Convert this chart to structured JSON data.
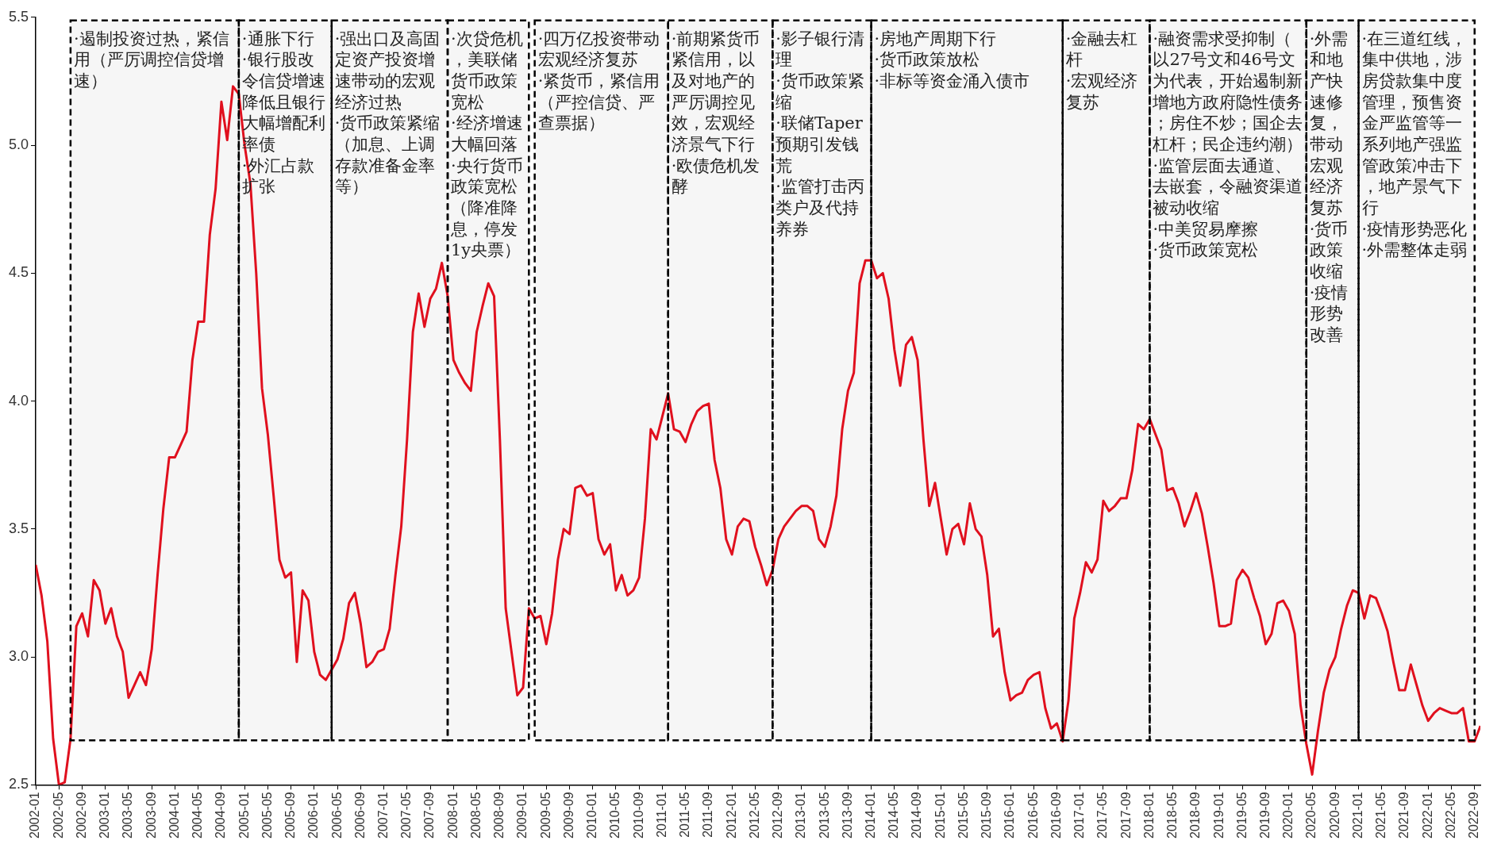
{
  "chart_data": {
    "type": "line",
    "x": [
      "2002-01",
      "2002-02",
      "2002-03",
      "2002-04",
      "2002-05",
      "2002-06",
      "2002-07",
      "2002-08",
      "2002-09",
      "2002-10",
      "2002-11",
      "2002-12",
      "2003-01",
      "2003-02",
      "2003-03",
      "2003-04",
      "2003-05",
      "2003-06",
      "2003-07",
      "2003-08",
      "2003-09",
      "2003-10",
      "2003-11",
      "2003-12",
      "2004-01",
      "2004-02",
      "2004-03",
      "2004-04",
      "2004-05",
      "2004-06",
      "2004-07",
      "2004-08",
      "2004-09",
      "2004-10",
      "2004-11",
      "2004-12",
      "2005-01",
      "2005-02",
      "2005-03",
      "2005-04",
      "2005-05",
      "2005-06",
      "2005-07",
      "2005-08",
      "2005-09",
      "2005-10",
      "2005-11",
      "2005-12",
      "2006-01",
      "2006-02",
      "2006-03",
      "2006-04",
      "2006-05",
      "2006-06",
      "2006-07",
      "2006-08",
      "2006-09",
      "2006-10",
      "2006-11",
      "2006-12",
      "2007-01",
      "2007-02",
      "2007-03",
      "2007-04",
      "2007-05",
      "2007-06",
      "2007-07",
      "2007-08",
      "2007-09",
      "2007-10",
      "2007-11",
      "2007-12",
      "2008-01",
      "2008-02",
      "2008-03",
      "2008-04",
      "2008-05",
      "2008-06",
      "2008-07",
      "2008-08",
      "2008-09",
      "2008-10",
      "2008-11",
      "2008-12",
      "2009-01",
      "2009-02",
      "2009-03",
      "2009-04",
      "2009-05",
      "2009-06",
      "2009-07",
      "2009-08",
      "2009-09",
      "2009-10",
      "2009-11",
      "2009-12",
      "2010-01",
      "2010-02",
      "2010-03",
      "2010-04",
      "2010-05",
      "2010-06",
      "2010-07",
      "2010-08",
      "2010-09",
      "2010-10",
      "2010-11",
      "2010-12",
      "2011-01",
      "2011-02",
      "2011-03",
      "2011-04",
      "2011-05",
      "2011-06",
      "2011-07",
      "2011-08",
      "2011-09",
      "2011-10",
      "2011-11",
      "2011-12",
      "2012-01",
      "2012-02",
      "2012-03",
      "2012-04",
      "2012-05",
      "2012-06",
      "2012-07",
      "2012-08",
      "2012-09",
      "2012-10",
      "2012-11",
      "2012-12",
      "2013-01",
      "2013-02",
      "2013-03",
      "2013-04",
      "2013-05",
      "2013-06",
      "2013-07",
      "2013-08",
      "2013-09",
      "2013-10",
      "2013-11",
      "2013-12",
      "2014-01",
      "2014-02",
      "2014-03",
      "2014-04",
      "2014-05",
      "2014-06",
      "2014-07",
      "2014-08",
      "2014-09",
      "2014-10",
      "2014-11",
      "2014-12",
      "2015-01",
      "2015-02",
      "2015-03",
      "2015-04",
      "2015-05",
      "2015-06",
      "2015-07",
      "2015-08",
      "2015-09",
      "2015-10",
      "2015-11",
      "2015-12",
      "2016-01",
      "2016-02",
      "2016-03",
      "2016-04",
      "2016-05",
      "2016-06",
      "2016-07",
      "2016-08",
      "2016-09",
      "2016-10",
      "2016-11",
      "2016-12",
      "2017-01",
      "2017-02",
      "2017-03",
      "2017-04",
      "2017-05",
      "2017-06",
      "2017-07",
      "2017-08",
      "2017-09",
      "2017-10",
      "2017-11",
      "2017-12",
      "2018-01",
      "2018-02",
      "2018-03",
      "2018-04",
      "2018-05",
      "2018-06",
      "2018-07",
      "2018-08",
      "2018-09",
      "2018-10",
      "2018-11",
      "2018-12",
      "2019-01",
      "2019-02",
      "2019-03",
      "2019-04",
      "2019-05",
      "2019-06",
      "2019-07",
      "2019-08",
      "2019-09",
      "2019-10",
      "2019-11",
      "2019-12",
      "2020-01",
      "2020-02",
      "2020-03",
      "2020-04",
      "2020-05",
      "2020-06",
      "2020-07",
      "2020-08",
      "2020-09",
      "2020-10",
      "2020-11",
      "2020-12",
      "2021-01",
      "2021-02",
      "2021-03",
      "2021-04",
      "2021-05",
      "2021-06",
      "2021-07",
      "2021-08",
      "2021-09",
      "2021-10",
      "2021-11",
      "2021-12",
      "2022-01",
      "2022-02",
      "2022-03",
      "2022-04",
      "2022-05",
      "2022-06",
      "2022-07",
      "2022-08",
      "2022-09",
      "2022-10"
    ],
    "series": [
      {
        "color": "#e0101e",
        "values": [
          3.36,
          3.24,
          3.06,
          2.68,
          2.5,
          2.51,
          2.68,
          3.12,
          3.17,
          3.08,
          3.3,
          3.26,
          3.13,
          3.19,
          3.08,
          3.02,
          2.84,
          2.89,
          2.94,
          2.89,
          3.03,
          3.32,
          3.58,
          3.78,
          3.78,
          3.83,
          3.88,
          4.16,
          4.31,
          4.31,
          4.65,
          4.83,
          5.17,
          5.02,
          5.23,
          5.2,
          5.0,
          4.85,
          4.5,
          4.05,
          3.87,
          3.63,
          3.38,
          3.31,
          3.33,
          2.98,
          3.26,
          3.22,
          3.02,
          2.93,
          2.91,
          2.95,
          2.99,
          3.07,
          3.21,
          3.25,
          3.13,
          2.96,
          2.98,
          3.02,
          3.03,
          3.11,
          3.32,
          3.51,
          3.85,
          4.27,
          4.42,
          4.29,
          4.4,
          4.44,
          4.54,
          4.41,
          4.16,
          4.11,
          4.07,
          4.04,
          4.27,
          4.37,
          4.46,
          4.41,
          3.85,
          3.19,
          3.02,
          2.85,
          2.88,
          3.19,
          3.15,
          3.16,
          3.05,
          3.17,
          3.38,
          3.5,
          3.48,
          3.66,
          3.67,
          3.63,
          3.64,
          3.46,
          3.4,
          3.44,
          3.26,
          3.32,
          3.24,
          3.26,
          3.31,
          3.54,
          3.89,
          3.85,
          3.94,
          4.03,
          3.89,
          3.88,
          3.84,
          3.91,
          3.96,
          3.98,
          3.99,
          3.77,
          3.66,
          3.46,
          3.4,
          3.51,
          3.54,
          3.53,
          3.43,
          3.36,
          3.28,
          3.34,
          3.46,
          3.51,
          3.54,
          3.57,
          3.59,
          3.59,
          3.57,
          3.46,
          3.43,
          3.51,
          3.63,
          3.89,
          4.04,
          4.11,
          4.46,
          4.55,
          4.55,
          4.48,
          4.5,
          4.4,
          4.2,
          4.06,
          4.22,
          4.25,
          4.16,
          3.85,
          3.59,
          3.68,
          3.54,
          3.4,
          3.5,
          3.52,
          3.44,
          3.6,
          3.5,
          3.47,
          3.32,
          3.08,
          3.11,
          2.94,
          2.83,
          2.85,
          2.86,
          2.91,
          2.93,
          2.94,
          2.8,
          2.72,
          2.74,
          2.67,
          2.83,
          3.15,
          3.25,
          3.37,
          3.33,
          3.38,
          3.61,
          3.57,
          3.59,
          3.62,
          3.62,
          3.73,
          3.91,
          3.89,
          3.93,
          3.87,
          3.81,
          3.65,
          3.66,
          3.6,
          3.51,
          3.57,
          3.64,
          3.56,
          3.43,
          3.29,
          3.12,
          3.12,
          3.13,
          3.3,
          3.34,
          3.31,
          3.23,
          3.16,
          3.05,
          3.09,
          3.21,
          3.22,
          3.18,
          3.09,
          2.81,
          2.66,
          2.54,
          2.71,
          2.86,
          2.95,
          3.0,
          3.11,
          3.2,
          3.26,
          3.25,
          3.15,
          3.24,
          3.23,
          3.17,
          3.1,
          2.98,
          2.87,
          2.87,
          2.97,
          2.89,
          2.81,
          2.75,
          2.78,
          2.8,
          2.79,
          2.78,
          2.78,
          2.8,
          2.67,
          2.67,
          2.73
        ]
      }
    ],
    "xlim": [
      "2002-01",
      "2022-10"
    ],
    "xticks": [
      "2002-01",
      "2002-05",
      "2002-09",
      "2003-01",
      "2003-05",
      "2003-09",
      "2004-01",
      "2004-05",
      "2004-09",
      "2005-01",
      "2005-05",
      "2005-09",
      "2006-01",
      "2006-05",
      "2006-09",
      "2007-01",
      "2007-05",
      "2007-09",
      "2008-01",
      "2008-05",
      "2008-09",
      "2009-01",
      "2009-05",
      "2009-09",
      "2010-01",
      "2010-05",
      "2010-09",
      "2011-01",
      "2011-05",
      "2011-09",
      "2012-01",
      "2012-05",
      "2012-09",
      "2013-01",
      "2013-05",
      "2013-09",
      "2014-01",
      "2014-05",
      "2014-09",
      "2015-01",
      "2015-05",
      "2015-09",
      "2016-01",
      "2016-05",
      "2016-09",
      "2017-01",
      "2017-05",
      "2017-09",
      "2018-01",
      "2018-05",
      "2018-09",
      "2019-01",
      "2019-05",
      "2019-09",
      "2020-01",
      "2020-05",
      "2020-09",
      "2021-01",
      "2021-05",
      "2021-09",
      "2022-01",
      "2022-05",
      "2022-09"
    ],
    "ylim": [
      2.5,
      5.5
    ],
    "yticks": [
      2.5,
      {
        "value": 3,
        "label": "3.0"
      },
      3.5,
      {
        "value": 4,
        "label": "4.0"
      },
      4.5,
      {
        "value": 5,
        "label": "5.0"
      },
      5.5
    ],
    "grid": false,
    "legend": false,
    "marker": "none",
    "line_style": "solid",
    "bands": [
      {
        "axis": "x",
        "from": "2002-07",
        "to": "2004-12",
        "label": "·遏制投资过热，紧信用（严厉调控信贷增速）"
      },
      {
        "axis": "x",
        "from": "2004-12",
        "to": "2006-04",
        "label": "·通胀下行\n·银行股改令信贷增速降低且银行大幅增配利率债\n·外汇占款扩张"
      },
      {
        "axis": "x",
        "from": "2006-04",
        "to": "2007-12",
        "label": "·强出口及高固定资产投资增速带动的宏观经济过热\n·货币政策紧缩（加息、上调存款准备金率等）"
      },
      {
        "axis": "x",
        "from": "2007-12",
        "to": "2009-02",
        "label": "·次贷危机，美联储货币政策宽松\n·经济增速大幅回落\n·央行货币政策宽松（降准降息，停发1y央票）"
      },
      {
        "axis": "x",
        "from": "2009-03",
        "to": "2011-02",
        "label": "·四万亿投资带动宏观经济复苏\n·紧货币，紧信用（严控信贷、严查票据）"
      },
      {
        "axis": "x",
        "from": "2011-02",
        "to": "2012-08",
        "label": "·前期紧货币紧信用，以及对地产的严厉调控见效，宏观经济景气下行\n·欧债危机发酵"
      },
      {
        "axis": "x",
        "from": "2012-08",
        "to": "2014-01",
        "label": "·影子银行清理\n·货币政策紧缩\n·联储Taper预期引发钱荒\n·监管打击丙类户及代持养券"
      },
      {
        "axis": "x",
        "from": "2014-01",
        "to": "2016-10",
        "label": "·房地产周期下行\n·货币政策放松\n·非标等资金涌入债市"
      },
      {
        "axis": "x",
        "from": "2016-10",
        "to": "2018-01",
        "label": "·金融去杠杆\n·宏观经济复苏"
      },
      {
        "axis": "x",
        "from": "2018-01",
        "to": "2020-04",
        "label": "·融资需求受抑制（以27号文和46号文为代表，开始遏制新增地方政府隐性债务；房住不炒；国企去杠杆；民企违约潮）\n·监管层面去通道、去嵌套，令融资渠道被动收缩\n·中美贸易摩擦\n·货币政策宽松"
      },
      {
        "axis": "x",
        "from": "2020-04",
        "to": "2021-01",
        "label": "·外需和地产快速修复，带动宏观经济复苏\n·货币政策收缩\n·疫情形势改善"
      },
      {
        "axis": "x",
        "from": "2021-01",
        "to": "2022-09",
        "label": "·在三道红线，集中供地，涉房贷款集中度管理，预售资金严监管等一系列地产强监管政策冲击下，地产景气下行\n·疫情形势恶化\n·外需整体走弱"
      }
    ]
  }
}
